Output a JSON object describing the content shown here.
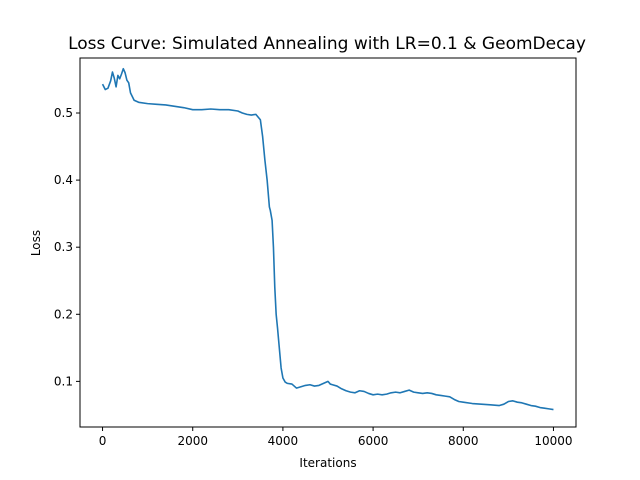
{
  "chart_data": {
    "type": "line",
    "title": "Loss Curve: Simulated Annealing with LR=0.1 & GeomDecay",
    "xlabel": "Iterations",
    "ylabel": "Loss",
    "xlim": [
      -500,
      10500
    ],
    "ylim": [
      0.032,
      0.582
    ],
    "xticks": [
      0,
      2000,
      4000,
      6000,
      8000,
      10000
    ],
    "yticks": [
      0.1,
      0.2,
      0.3,
      0.4,
      0.5
    ],
    "xtick_labels": [
      "0",
      "2000",
      "4000",
      "6000",
      "8000",
      "10000"
    ],
    "ytick_labels": [
      "0.1",
      "0.2",
      "0.3",
      "0.4",
      "0.5"
    ],
    "grid": false,
    "legend": "none",
    "series": [
      {
        "color": "#1f77b4",
        "x": [
          0,
          60,
          120,
          180,
          220,
          260,
          300,
          340,
          380,
          420,
          460,
          500,
          540,
          580,
          620,
          700,
          800,
          1000,
          1200,
          1400,
          1600,
          1800,
          2000,
          2200,
          2400,
          2600,
          2800,
          3000,
          3100,
          3200,
          3300,
          3400,
          3500,
          3550,
          3600,
          3650,
          3700,
          3720,
          3760,
          3790,
          3820,
          3850,
          3880,
          3920,
          3960,
          4000,
          4050,
          4100,
          4200,
          4300,
          4400,
          4500,
          4600,
          4700,
          4800,
          4900,
          5000,
          5050,
          5100,
          5200,
          5300,
          5400,
          5500,
          5600,
          5700,
          5800,
          5900,
          6000,
          6100,
          6200,
          6300,
          6400,
          6500,
          6600,
          6700,
          6800,
          6900,
          7000,
          7100,
          7200,
          7300,
          7400,
          7500,
          7600,
          7700,
          7800,
          7900,
          8000,
          8200,
          8400,
          8600,
          8800,
          8900,
          9000,
          9100,
          9200,
          9300,
          9400,
          9500,
          9600,
          9700,
          9800,
          9900,
          10000
        ],
        "y": [
          0.543,
          0.535,
          0.537,
          0.548,
          0.561,
          0.552,
          0.539,
          0.556,
          0.551,
          0.558,
          0.566,
          0.56,
          0.549,
          0.545,
          0.53,
          0.519,
          0.516,
          0.514,
          0.513,
          0.512,
          0.51,
          0.508,
          0.505,
          0.505,
          0.506,
          0.505,
          0.505,
          0.503,
          0.5,
          0.498,
          0.497,
          0.498,
          0.49,
          0.465,
          0.43,
          0.4,
          0.36,
          0.355,
          0.34,
          0.3,
          0.24,
          0.2,
          0.18,
          0.15,
          0.12,
          0.105,
          0.099,
          0.097,
          0.096,
          0.09,
          0.092,
          0.094,
          0.095,
          0.093,
          0.094,
          0.097,
          0.1,
          0.096,
          0.095,
          0.093,
          0.089,
          0.086,
          0.084,
          0.083,
          0.086,
          0.085,
          0.082,
          0.08,
          0.081,
          0.08,
          0.081,
          0.083,
          0.084,
          0.083,
          0.085,
          0.087,
          0.084,
          0.083,
          0.082,
          0.083,
          0.082,
          0.08,
          0.079,
          0.078,
          0.077,
          0.073,
          0.07,
          0.069,
          0.067,
          0.066,
          0.065,
          0.064,
          0.066,
          0.07,
          0.071,
          0.069,
          0.068,
          0.066,
          0.064,
          0.063,
          0.061,
          0.06,
          0.059,
          0.058
        ]
      }
    ]
  }
}
